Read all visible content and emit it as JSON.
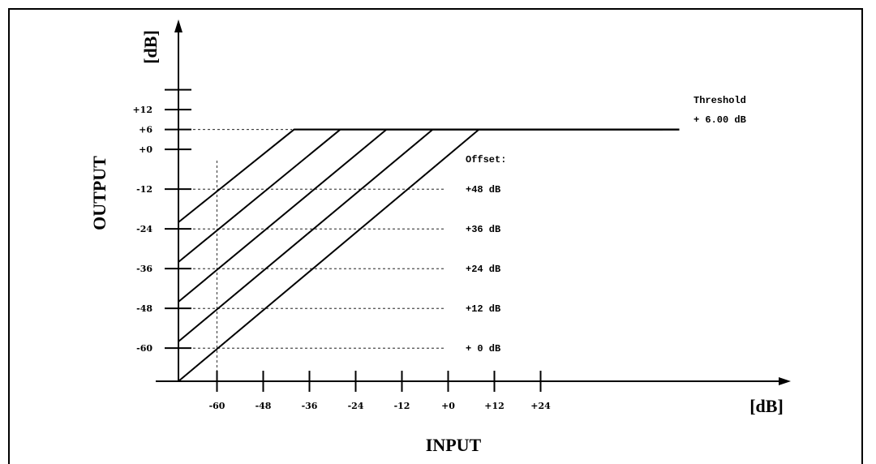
{
  "chart_data": {
    "type": "line",
    "xlabel": "INPUT",
    "ylabel": "OUTPUT",
    "x_unit": "[dB]",
    "y_unit": "[dB]",
    "xlim": [
      -70,
      70
    ],
    "ylim": [
      -70,
      16
    ],
    "x_ticks": [
      -60,
      -48,
      -36,
      -24,
      -12,
      0,
      12,
      24
    ],
    "x_tick_labels": [
      "-60",
      "-48",
      "-36",
      "-24",
      "-12",
      "+0",
      "+12",
      "+24"
    ],
    "y_ticks": [
      -60,
      -48,
      -36,
      -24,
      -12,
      0,
      6,
      12
    ],
    "y_tick_labels": [
      "-60",
      "-48",
      "-36",
      "-24",
      "-12",
      "+0",
      "+6",
      "+12"
    ],
    "y_extra_ticks": [
      18
    ],
    "threshold_db": 6,
    "threshold_label": "Threshold",
    "threshold_value_label": "+ 6.00 dB",
    "threshold_line_end_x": 60,
    "offset_title": "Offset:",
    "series": [
      {
        "offset_label": "+48 dB",
        "x": [
          -70,
          -40,
          60
        ],
        "y": [
          -22,
          6,
          6
        ]
      },
      {
        "offset_label": "+36 dB",
        "x": [
          -70,
          -28,
          60
        ],
        "y": [
          -34,
          6,
          6
        ]
      },
      {
        "offset_label": "+24 dB",
        "x": [
          -70,
          -16,
          60
        ],
        "y": [
          -46,
          6,
          6
        ]
      },
      {
        "offset_label": "+12 dB",
        "x": [
          -70,
          -4,
          60
        ],
        "y": [
          -58,
          6,
          6
        ]
      },
      {
        "offset_label": "+ 0 dB",
        "x": [
          -70,
          8,
          60
        ],
        "y": [
          -70,
          6,
          6
        ]
      }
    ],
    "guide_lines": {
      "horizontal_at_y": [
        6,
        -12,
        -24,
        -36,
        -48,
        -60
      ],
      "vertical_at_x": [
        -60
      ]
    },
    "grid": false
  }
}
